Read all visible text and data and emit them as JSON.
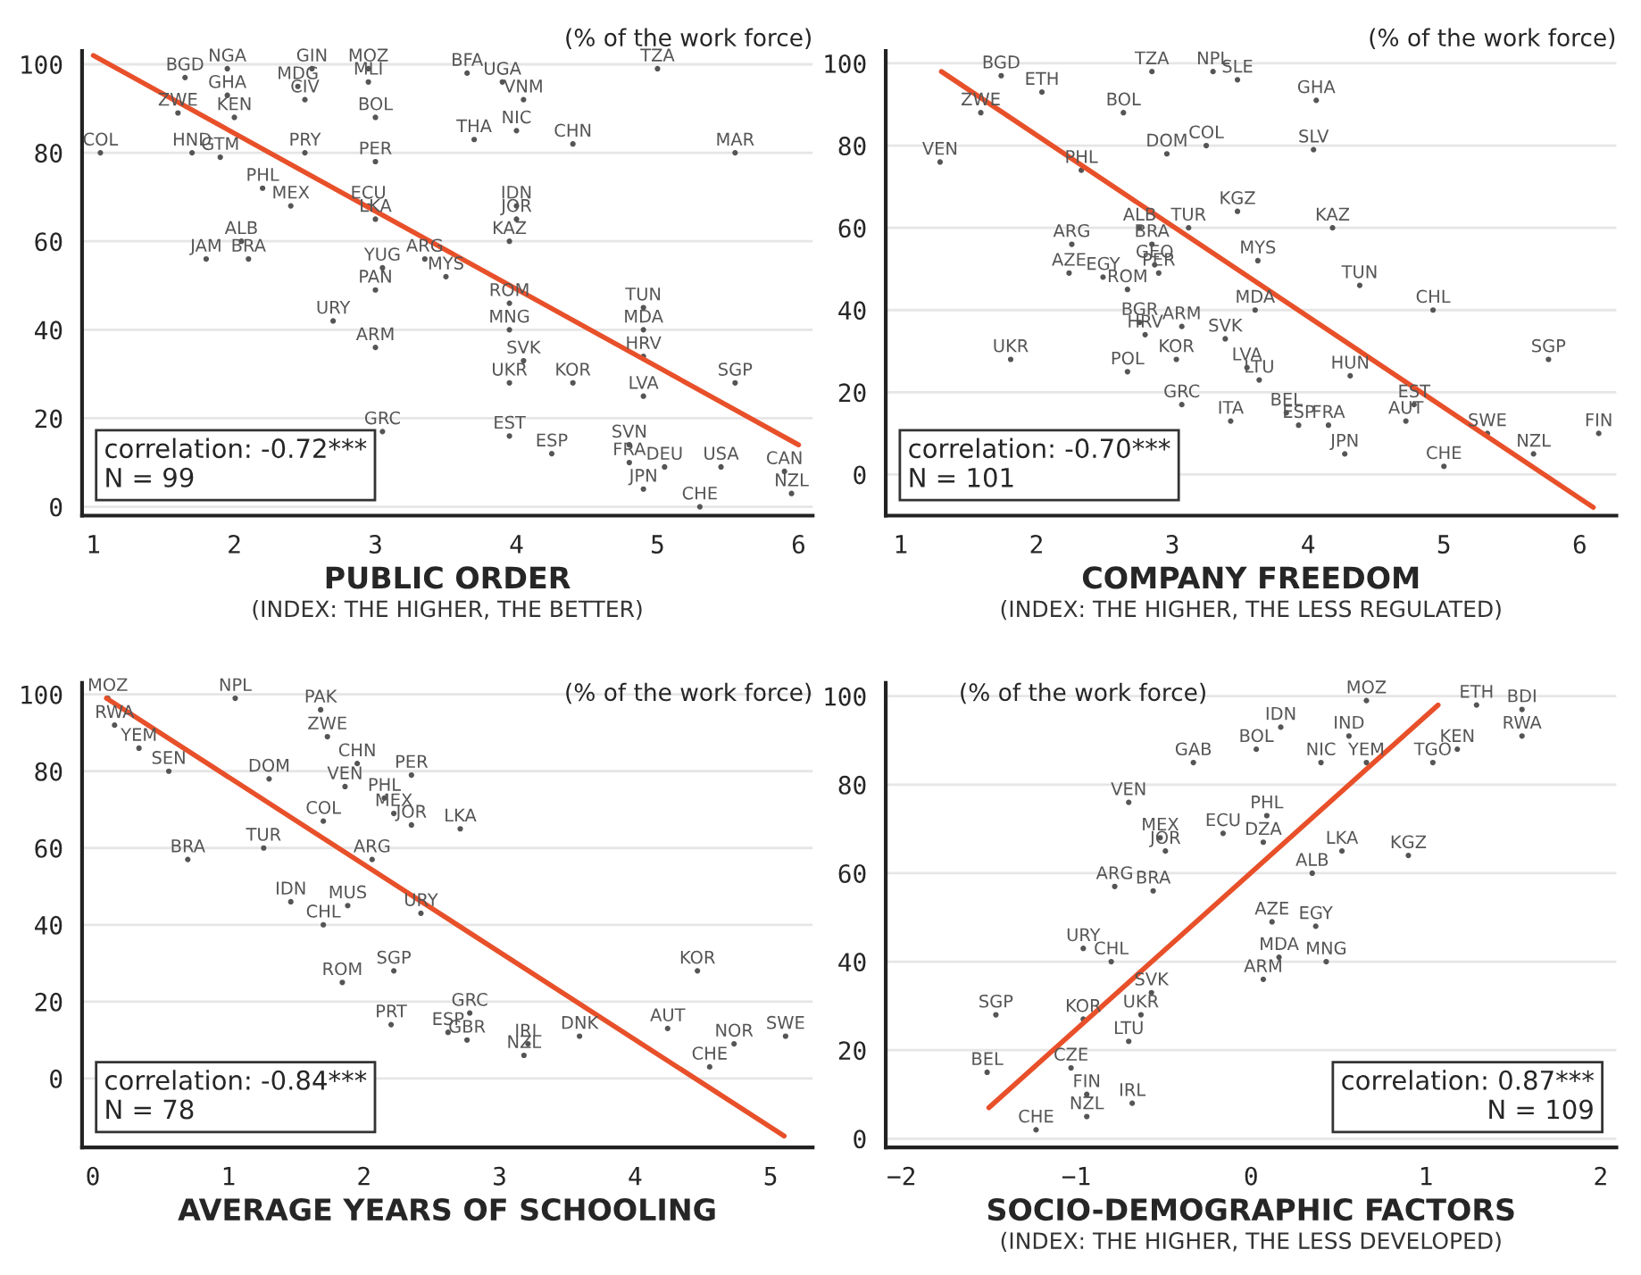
{
  "chart_data": [
    {
      "type": "scatter",
      "xlabel": "PUBLIC ORDER\n(INDEX: THE HIGHER, THE BETTER)",
      "ylabel": "(% of the work force)",
      "annotations": [
        "correlation: -0.72***\nN = 99"
      ],
      "xlim": [
        0.92,
        6.1
      ],
      "ylim": [
        -2,
        103
      ],
      "xticks": [
        1,
        2,
        3,
        4,
        5,
        6
      ],
      "yticks": [
        0,
        20,
        40,
        60,
        80,
        100
      ],
      "grid": "y",
      "legend": false,
      "series": [
        {
          "color": "#555555",
          "marker": "circle",
          "x": [
            1.95,
            1.65,
            2.55,
            2.95,
            2.95,
            3.65,
            3.9,
            5.0,
            2.45,
            1.95,
            2.5,
            4.05,
            1.6,
            2.0,
            3.0,
            4.0,
            3.7,
            4.4,
            5.55,
            1.05,
            1.7,
            1.9,
            2.5,
            3.0,
            2.2,
            2.4,
            2.95,
            4.0,
            4.0,
            3.0,
            3.95,
            2.05,
            1.8,
            2.1,
            3.35,
            3.05,
            3.5,
            3.0,
            3.95,
            4.9,
            2.7,
            3.95,
            4.9,
            3.0,
            4.05,
            4.9,
            3.95,
            4.4,
            5.55,
            4.9,
            3.95,
            3.05,
            4.8,
            4.25,
            4.8,
            5.05,
            5.45,
            4.9,
            5.3,
            5.95,
            5.9
          ],
          "values": [
            99,
            97,
            99,
            99,
            96,
            98,
            96,
            99,
            95,
            93,
            92,
            92,
            89,
            88,
            88,
            85,
            83,
            82,
            80,
            80,
            80,
            79,
            80,
            78,
            72,
            68,
            68,
            68,
            65,
            65,
            60,
            60,
            56,
            56,
            56,
            54,
            52,
            49,
            46,
            45,
            42,
            40,
            40,
            36,
            33,
            34,
            28,
            28,
            28,
            25,
            16,
            17,
            14,
            12,
            10,
            9,
            9,
            4,
            0,
            3,
            8
          ],
          "value_labels": [
            "NGA",
            "BGD",
            "GIN",
            "MOZ",
            "MLI",
            "BFA",
            "UGA",
            "TZA",
            "MDG",
            "GHA",
            "CIV",
            "VNM",
            "ZWE",
            "KEN",
            "BOL",
            "NIC",
            "THA",
            "CHN",
            "MAR",
            "COL",
            "HND",
            "GTM",
            "PRY",
            "PER",
            "PHL",
            "MEX",
            "ECU",
            "IDN",
            "JOR",
            "LKA",
            "KAZ",
            "ALB",
            "JAM",
            "BRA",
            "ARG",
            "YUG",
            "MYS",
            "PAN",
            "ROM",
            "TUN",
            "URY",
            "MNG",
            "MDA",
            "ARM",
            "SVK",
            "HRV",
            "UKR",
            "KOR",
            "SGP",
            "LVA",
            "EST",
            "GRC",
            "SVN",
            "ESP",
            "FRA",
            "DEU",
            "USA",
            "JPN",
            "CHE",
            "NZL",
            "CAN"
          ]
        },
        {
          "type": "line",
          "color": "#e8502a",
          "x": [
            1,
            6
          ],
          "values": [
            102,
            14
          ]
        }
      ]
    },
    {
      "type": "scatter",
      "xlabel": "COMPANY FREEDOM\n(INDEX: THE HIGHER, THE LESS REGULATED)",
      "ylabel": "(% of the work force)",
      "annotations": [
        "correlation: -0.70***\nN = 101"
      ],
      "xlim": [
        0.89,
        6.27
      ],
      "ylim": [
        -10,
        103
      ],
      "xticks": [
        1,
        2,
        3,
        4,
        5,
        6
      ],
      "yticks": [
        0,
        20,
        40,
        60,
        80,
        100
      ],
      "grid": "y",
      "legend": false,
      "series": [
        {
          "color": "#555555",
          "marker": "circle",
          "x": [
            1.74,
            3.3,
            3.48,
            2.85,
            4.06,
            2.04,
            1.59,
            1.29,
            4.04,
            3.25,
            3.48,
            4.18,
            2.26,
            2.76,
            3.12,
            2.85,
            3.63,
            2.24,
            2.49,
            2.87,
            2.9,
            4.38,
            2.67,
            4.92,
            3.61,
            2.76,
            2.8,
            3.07,
            3.39,
            1.81,
            3.03,
            5.77,
            2.67,
            3.55,
            3.64,
            4.31,
            4.78,
            3.07,
            3.84,
            3.43,
            3.93,
            4.15,
            4.72,
            6.14,
            5.66,
            4.27,
            5.0,
            5.32,
            2.33,
            2.96,
            2.64
          ],
          "values": [
            97,
            98,
            96,
            98,
            91,
            93,
            88,
            76,
            79,
            80,
            64,
            60,
            56,
            60,
            60,
            56,
            52,
            49,
            48,
            51,
            49,
            46,
            45,
            40,
            40,
            37,
            34,
            36,
            33,
            28,
            28,
            28,
            25,
            26,
            23,
            24,
            17,
            17,
            15,
            13,
            12,
            12,
            13,
            10,
            5,
            5,
            2,
            10,
            74,
            78,
            88
          ],
          "value_labels": [
            "BGD",
            "NPL",
            "SLE",
            "TZA",
            "GHA",
            "ETH",
            "ZWE",
            "VEN",
            "SLV",
            "COL",
            "KGZ",
            "KAZ",
            "ARG",
            "ALB",
            "TUR",
            "BRA",
            "MYS",
            "AZE",
            "EGY",
            "GEO",
            "PER",
            "TUN",
            "ROM",
            "CHL",
            "MDA",
            "BGR",
            "HRV",
            "ARM",
            "SVK",
            "UKR",
            "KOR",
            "SGP",
            "POL",
            "LVA",
            "LTU",
            "HUN",
            "EST",
            "GRC",
            "BEL",
            "ITA",
            "ESP",
            "FRA",
            "AUT",
            "FIN",
            "NZL",
            "JPN",
            "CHE",
            "SWE",
            "PHL",
            "DOM",
            "BOL"
          ]
        },
        {
          "type": "line",
          "color": "#e8502a",
          "x": [
            1.3,
            6.1
          ],
          "values": [
            98,
            -8
          ]
        }
      ]
    },
    {
      "type": "scatter",
      "xlabel": "AVERAGE YEARS OF SCHOOLING",
      "ylabel": "(% of the work force)",
      "annotations": [
        "correlation: -0.84***\nN = 78"
      ],
      "xlim": [
        -0.08,
        5.31
      ],
      "ylim": [
        -18,
        103
      ],
      "xticks": [
        0,
        1,
        2,
        3,
        4,
        5
      ],
      "yticks": [
        0,
        20,
        40,
        60,
        80,
        100
      ],
      "grid": "y",
      "legend": false,
      "series": [
        {
          "color": "#555555",
          "marker": "circle",
          "x": [
            0.11,
            1.05,
            1.68,
            0.16,
            0.34,
            1.73,
            1.95,
            2.35,
            1.86,
            2.15,
            2.22,
            2.35,
            2.71,
            1.7,
            1.3,
            0.56,
            1.26,
            0.7,
            2.06,
            1.46,
            1.88,
            2.42,
            1.7,
            2.22,
            1.84,
            4.46,
            2.2,
            2.78,
            2.76,
            2.62,
            4.24,
            3.59,
            3.18,
            4.73,
            5.11,
            4.55,
            3.21
          ],
          "values": [
            99,
            99,
            96,
            92,
            86,
            89,
            82,
            79,
            76,
            73,
            69,
            66,
            65,
            67,
            78,
            80,
            60,
            57,
            57,
            46,
            45,
            43,
            40,
            28,
            25,
            28,
            14,
            17,
            10,
            12,
            13,
            11,
            6,
            9,
            11,
            3,
            9
          ],
          "value_labels": [
            "MOZ",
            "NPL",
            "PAK",
            "RWA",
            "YEM",
            "ZWE",
            "CHN",
            "PER",
            "VEN",
            "PHL",
            "MEX",
            "JOR",
            "LKA",
            "COL",
            "DOM",
            "SEN",
            "TUR",
            "BRA",
            "ARG",
            "IDN",
            "MUS",
            "URY",
            "CHL",
            "SGP",
            "ROM",
            "KOR",
            "PRT",
            "GRC",
            "GBR",
            "ESP",
            "AUT",
            "DNK",
            "NZL",
            "NOR",
            "SWE",
            "CHE",
            "IRL"
          ]
        },
        {
          "type": "line",
          "color": "#e8502a",
          "x": [
            0.1,
            5.1
          ],
          "values": [
            99,
            -15
          ]
        }
      ]
    },
    {
      "type": "scatter",
      "xlabel": "SOCIO-DEMOGRAPHIC FACTORS\n(INDEX: THE HIGHER, THE LESS DEVELOPED)",
      "ylabel": "(% of the work force)",
      "annotations": [
        "correlation: 0.87***\nN = 109"
      ],
      "xlim": [
        -2.09,
        2.09
      ],
      "ylim": [
        -2,
        103
      ],
      "xticks": [
        {
          "value": -2,
          "label": "−2"
        },
        {
          "value": -1,
          "label": "−1"
        },
        0,
        1,
        2
      ],
      "yticks": [
        0,
        20,
        40,
        60,
        80,
        100
      ],
      "grid": "y",
      "legend": false,
      "series": [
        {
          "color": "#555555",
          "marker": "circle",
          "x": [
            0.17,
            0.03,
            -0.33,
            0.4,
            0.66,
            1.04,
            1.18,
            1.55,
            1.55,
            0.66,
            1.29,
            0.56,
            -0.7,
            0.09,
            -0.52,
            -0.16,
            0.07,
            0.52,
            0.9,
            -0.49,
            0.35,
            -0.78,
            -0.56,
            0.12,
            0.37,
            -0.96,
            0.16,
            0.43,
            0.07,
            -0.8,
            -0.57,
            -1.46,
            -0.96,
            -0.63,
            -0.7,
            -1.51,
            -1.03,
            -0.68,
            -0.94,
            -1.23,
            -0.94
          ],
          "values": [
            93,
            88,
            85,
            85,
            85,
            85,
            88,
            91,
            97,
            99,
            98,
            91,
            76,
            73,
            68,
            69,
            67,
            65,
            64,
            65,
            60,
            57,
            56,
            49,
            48,
            43,
            41,
            40,
            36,
            40,
            33,
            28,
            27,
            28,
            22,
            15,
            16,
            8,
            5,
            2,
            10
          ],
          "value_labels": [
            "IDN",
            "BOL",
            "GAB",
            "NIC",
            "YEM",
            "TGO",
            "KEN",
            "RWA",
            "BDI",
            "MOZ",
            "ETH",
            "IND",
            "VEN",
            "PHL",
            "MEX",
            "ECU",
            "DZA",
            "LKA",
            "KGZ",
            "JOR",
            "ALB",
            "ARG",
            "BRA",
            "AZE",
            "EGY",
            "URY",
            "MDA",
            "MNG",
            "ARM",
            "CHL",
            "SVK",
            "SGP",
            "KOR",
            "UKR",
            "LTU",
            "BEL",
            "CZE",
            "IRL",
            "NZL",
            "CHE",
            "FIN"
          ]
        },
        {
          "type": "line",
          "color": "#e8502a",
          "x": [
            -1.5,
            1.07
          ],
          "values": [
            7,
            98
          ]
        }
      ]
    }
  ]
}
